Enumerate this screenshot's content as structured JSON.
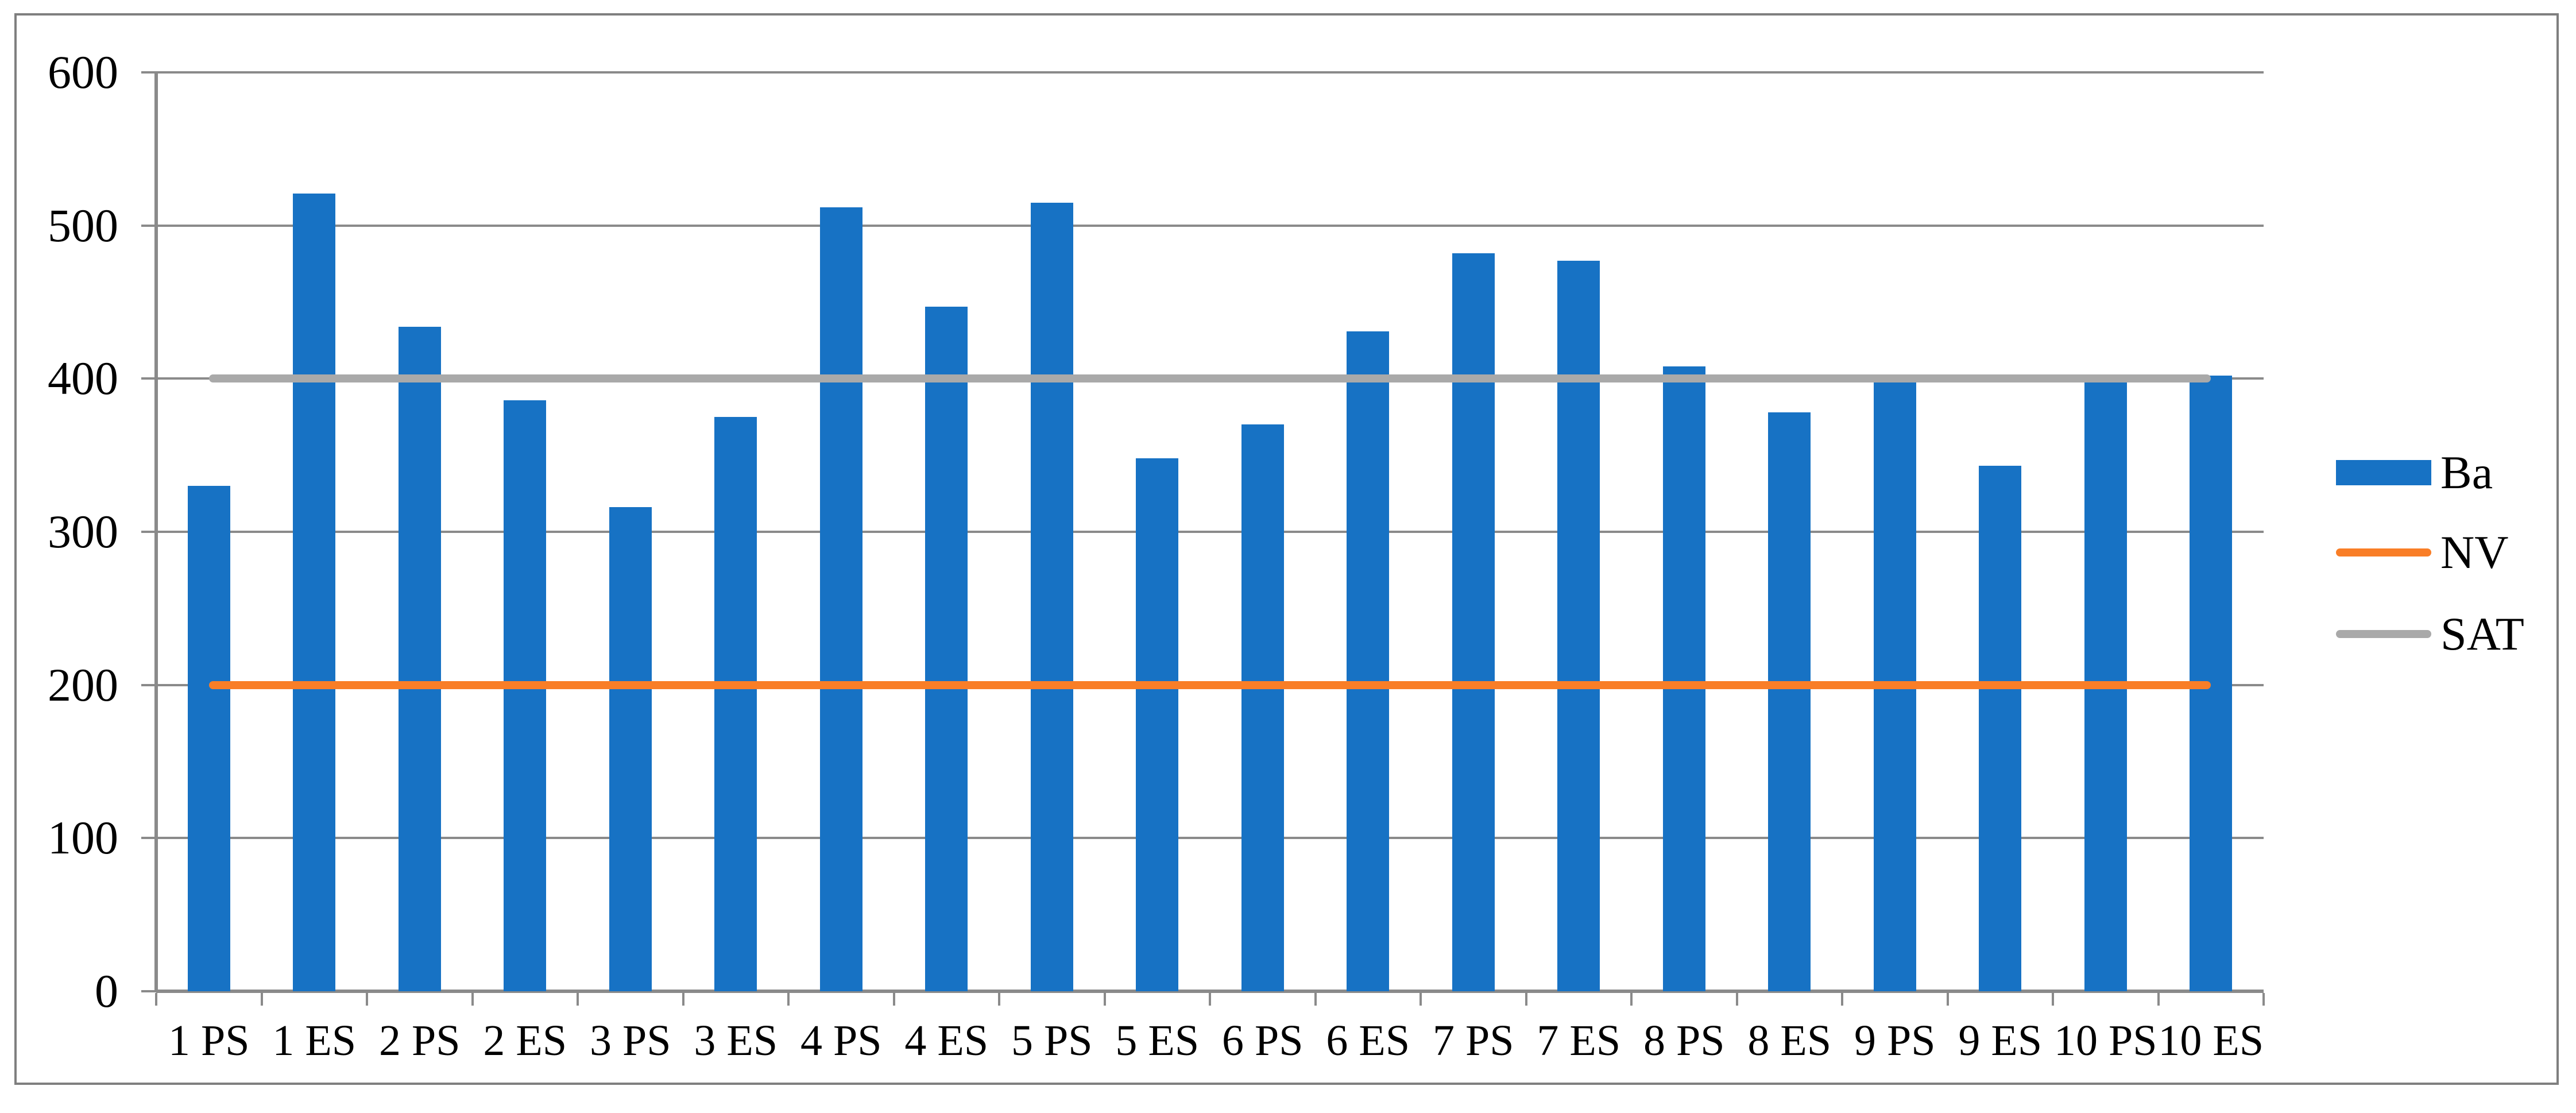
{
  "chart_data": {
    "type": "bar",
    "title": "",
    "xlabel": "",
    "ylabel": "",
    "categories": [
      "1 PS",
      "1 ES",
      "2 PS",
      "2 ES",
      "3 PS",
      "3 ES",
      "4 PS",
      "4 ES",
      "5 PS",
      "5 ES",
      "6 PS",
      "6 ES",
      "7 PS",
      "7 ES",
      "8 PS",
      "8 ES",
      "9 PS",
      "9 ES",
      "10 PS",
      "10 ES"
    ],
    "series": [
      {
        "name": "Ba",
        "type": "bar",
        "color": "#1772c4",
        "values": [
          330,
          521,
          434,
          386,
          316,
          375,
          512,
          447,
          515,
          348,
          370,
          431,
          482,
          477,
          408,
          378,
          398,
          343,
          398,
          402
        ]
      },
      {
        "name": "NV",
        "type": "line",
        "color": "#f97e27",
        "value": 200
      },
      {
        "name": "SAT",
        "type": "line",
        "color": "#a9a9a9",
        "value": 400
      }
    ],
    "ylim": [
      0,
      600
    ],
    "yticks": [
      0,
      100,
      200,
      300,
      400,
      500,
      600
    ],
    "grid": "horizontal",
    "legend_position": "right",
    "colors": {
      "bar": "#1772c4",
      "nv_line": "#f97e27",
      "sat_line": "#a9a9a9",
      "gridline": "#8a8a8a",
      "axis": "#8a8a8a",
      "border": "#7f7f7f",
      "text": "#000000",
      "background": "#ffffff"
    }
  }
}
